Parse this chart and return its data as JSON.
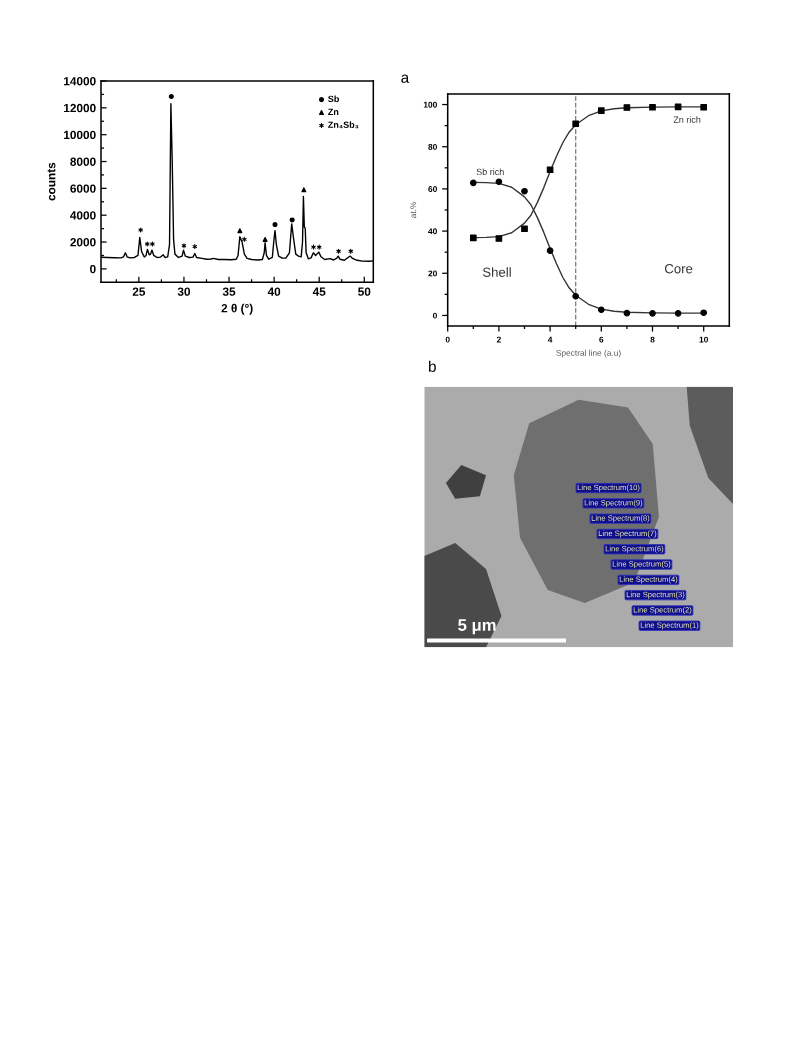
{
  "chart_data": [
    {
      "type": "line",
      "xlabel": "2 θ (°)",
      "ylabel": "counts",
      "xlim": [
        20.8,
        51.0
      ],
      "ylim": [
        -1000,
        14000
      ],
      "xticks": [
        {
          "value": 22.5,
          "label": null
        },
        25,
        {
          "value": 27.5,
          "label": null
        },
        30,
        {
          "value": 32.5,
          "label": null
        },
        35,
        {
          "value": 37.5,
          "label": null
        },
        40,
        {
          "value": 42.5,
          "label": null
        },
        45,
        {
          "value": 47.5,
          "label": null
        },
        50
      ],
      "yticks": [
        0,
        {
          "value": 1000,
          "label": null
        },
        2000,
        {
          "value": 3000,
          "label": null
        },
        4000,
        {
          "value": 5000,
          "label": null
        },
        6000,
        {
          "value": 7000,
          "label": null
        },
        8000,
        {
          "value": 9000,
          "label": null
        },
        10000,
        {
          "value": 11000,
          "label": null
        },
        12000,
        {
          "value": 13000,
          "label": null
        },
        14000
      ],
      "legend": "top right",
      "series": [
        {
          "type": "line",
          "color": "#000000",
          "x": [
            20.8,
            21.5,
            22.3,
            23.0,
            23.3,
            23.5,
            23.7,
            24.0,
            24.5,
            24.9,
            25.1,
            25.3,
            25.6,
            25.8,
            25.95,
            26.15,
            26.3,
            26.45,
            26.65,
            27.0,
            27.4,
            27.7,
            27.9,
            28.2,
            28.4,
            28.55,
            28.7,
            28.85,
            29.0,
            29.4,
            29.8,
            29.95,
            30.15,
            30.6,
            31.0,
            31.2,
            31.4,
            32.0,
            32.5,
            33.0,
            33.3,
            33.8,
            34.5,
            35.2,
            35.8,
            36.0,
            36.2,
            36.45,
            36.7,
            37.0,
            37.5,
            38.2,
            38.7,
            38.9,
            39.0,
            39.15,
            39.4,
            39.8,
            40.0,
            40.1,
            40.25,
            40.5,
            40.9,
            41.3,
            41.7,
            41.95,
            42.15,
            42.4,
            42.7,
            43.0,
            43.15,
            43.25,
            43.35,
            43.45,
            43.55,
            43.8,
            44.1,
            44.35,
            44.6,
            44.95,
            45.2,
            45.6,
            46.2,
            46.6,
            46.95,
            47.1,
            47.3,
            47.8,
            48.3,
            48.45,
            48.7,
            49.2,
            49.8,
            50.5,
            51.0
          ],
          "values": [
            870,
            850,
            830,
            820,
            900,
            1200,
            900,
            820,
            850,
            1000,
            2350,
            1300,
            880,
            1000,
            1450,
            1050,
            1100,
            1400,
            1000,
            850,
            880,
            1050,
            850,
            900,
            1800,
            12300,
            8000,
            2200,
            1100,
            850,
            950,
            1400,
            950,
            850,
            880,
            1150,
            850,
            780,
            720,
            740,
            780,
            700,
            700,
            680,
            720,
            1000,
            2400,
            2000,
            1100,
            780,
            700,
            660,
            700,
            1200,
            1950,
            1000,
            720,
            850,
            2300,
            2850,
            1800,
            950,
            800,
            800,
            1200,
            3350,
            2300,
            1100,
            950,
            900,
            2000,
            5400,
            3100,
            3050,
            1200,
            750,
            820,
            1200,
            1000,
            1250,
            900,
            700,
            760,
            660,
            800,
            950,
            720,
            640,
            900,
            950,
            780,
            640,
            580,
            570,
            590
          ]
        },
        {
          "type": "scatter",
          "name": "Sb",
          "marker": "circle",
          "color": "#000000",
          "x": [
            28.6,
            40.1,
            42.0
          ],
          "values": [
            12850,
            3300,
            3650
          ]
        },
        {
          "type": "scatter",
          "name": "Zn",
          "marker": "triangle",
          "color": "#000000",
          "x": [
            36.2,
            39.0,
            43.3
          ],
          "values": [
            2850,
            2200,
            5900
          ]
        },
        {
          "type": "scatter",
          "name": "Zn₄Sb₃",
          "marker": "cross",
          "color": "#000000",
          "x": [
            25.2,
            25.93,
            26.5,
            30.0,
            31.2,
            36.7,
            44.37,
            45.0,
            47.15,
            48.5
          ],
          "values": [
            2900,
            1850,
            1850,
            1730,
            1660,
            2200,
            1620,
            1620,
            1320,
            1320
          ]
        }
      ]
    },
    {
      "type": "line",
      "title": "a",
      "xlabel": "Spectral line (a.u)",
      "ylabel": "at.%",
      "xlim": [
        0,
        11
      ],
      "ylim": [
        -5,
        105
      ],
      "xticks": [
        0,
        {
          "value": 1,
          "label": null
        },
        2,
        {
          "value": 3,
          "label": null
        },
        4,
        {
          "value": 5,
          "label": null
        },
        6,
        {
          "value": 7,
          "label": null
        },
        8,
        {
          "value": 9,
          "label": null
        },
        10
      ],
      "yticks": [
        0,
        {
          "value": 10,
          "label": null
        },
        20,
        {
          "value": 30,
          "label": null
        },
        40,
        {
          "value": 50,
          "label": null
        },
        60,
        {
          "value": 70,
          "label": null
        },
        80,
        {
          "value": 90,
          "label": null
        },
        100
      ],
      "ref_lines": [
        {
          "axis": "x",
          "value": 5,
          "color": "#777777",
          "line_style": "dashed"
        }
      ],
      "annotations": [
        "Sb rich",
        "Zn rich",
        "Shell",
        "Core"
      ],
      "series": [
        {
          "type": "line",
          "color": "#333333",
          "x": [
            1,
            1.5,
            2,
            2.5,
            3,
            3.25,
            3.5,
            3.75,
            4,
            4.25,
            4.5,
            4.75,
            5,
            5.5,
            6,
            6.5,
            7,
            8,
            9,
            10
          ],
          "values": [
            63.1,
            63.0,
            62.6,
            60.8,
            56.2,
            52.5,
            46.5,
            39.5,
            31.8,
            24.5,
            18.0,
            13.0,
            9.6,
            5.3,
            3.0,
            2.0,
            1.5,
            1.2,
            1.1,
            1.1
          ]
        },
        {
          "type": "line",
          "color": "#333333",
          "x": [
            1,
            1.5,
            2,
            2.5,
            3,
            3.25,
            3.5,
            3.75,
            4,
            4.25,
            4.5,
            4.75,
            5,
            5.5,
            6,
            6.5,
            7,
            8,
            9,
            10
          ],
          "values": [
            36.9,
            37.0,
            37.4,
            39.2,
            43.8,
            47.5,
            53.5,
            60.5,
            68.2,
            75.5,
            82.0,
            87.0,
            90.4,
            94.7,
            97.0,
            98.0,
            98.5,
            98.8,
            98.9,
            98.9
          ]
        },
        {
          "type": "scatter",
          "marker": "circle",
          "color": "#000000",
          "x": [
            1,
            2,
            3,
            4,
            5,
            6,
            7,
            8,
            9,
            10
          ],
          "values": [
            62.9,
            63.4,
            58.9,
            30.7,
            9.1,
            2.7,
            1.1,
            1.0,
            1.0,
            1.3
          ]
        },
        {
          "type": "scatter",
          "marker": "square",
          "color": "#000000",
          "x": [
            1,
            2,
            3,
            4,
            5,
            6,
            7,
            8,
            9,
            10
          ],
          "values": [
            36.8,
            36.5,
            41.1,
            69.1,
            90.9,
            97.1,
            98.6,
            98.7,
            98.9,
            98.7
          ]
        }
      ]
    },
    {
      "type": "other",
      "title": "b",
      "annotations": [
        "Line Spectrum(10)",
        "Line Spectrum(9)",
        "Line Spectrum(8)",
        "Line Spectrum(7)",
        "Line Spectrum(6)",
        "Line Spectrum(5)",
        "Line Spectrum(4)",
        "Line Spectrum(3)",
        "Line Spectrum(2)",
        "Line Spectrum(1)",
        "5 μm"
      ]
    }
  ]
}
